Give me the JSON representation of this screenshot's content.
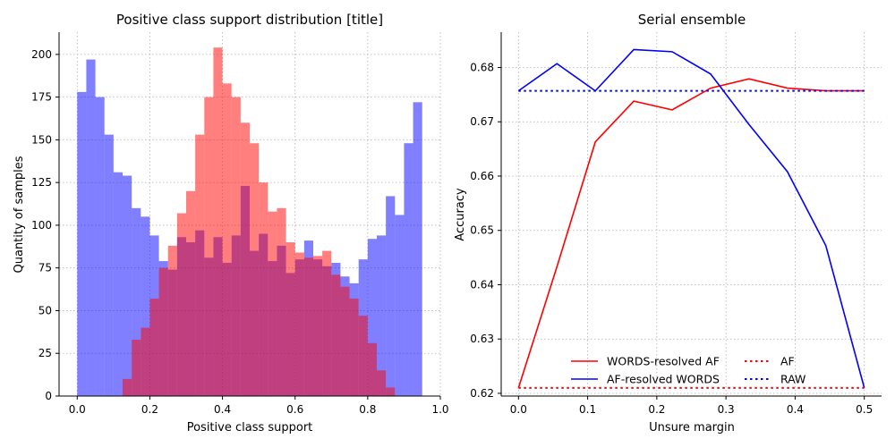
{
  "chart_data": [
    {
      "type": "bar",
      "title": "Positive class support distribution [title]",
      "xlabel": "Positive class support",
      "ylabel": "Quantity of samples",
      "xlim": [
        -0.05,
        1.0
      ],
      "ylim": [
        0,
        213
      ],
      "xticks": [
        0.0,
        0.2,
        0.4,
        0.6,
        0.8,
        1.0
      ],
      "xtick_labels": [
        "0.0",
        "0.2",
        "0.4",
        "0.6",
        "0.8",
        "1.0"
      ],
      "yticks": [
        0,
        25,
        50,
        75,
        100,
        125,
        150,
        175,
        200
      ],
      "grid": true,
      "bin_width": 0.025,
      "bin_starts": [
        0.0,
        0.025,
        0.05,
        0.075,
        0.1,
        0.125,
        0.15,
        0.175,
        0.2,
        0.225,
        0.25,
        0.275,
        0.3,
        0.325,
        0.35,
        0.375,
        0.4,
        0.425,
        0.45,
        0.475,
        0.5,
        0.525,
        0.55,
        0.575,
        0.6,
        0.625,
        0.65,
        0.675,
        0.7,
        0.725,
        0.75,
        0.775,
        0.8,
        0.825,
        0.85,
        0.875,
        0.9,
        0.925,
        0.95,
        0.975
      ],
      "series": [
        {
          "color": "#0000ff",
          "alpha": 0.5,
          "values": [
            178,
            197,
            175,
            153,
            131,
            129,
            110,
            105,
            94,
            79,
            74,
            93,
            90,
            97,
            81,
            93,
            78,
            94,
            123,
            85,
            95,
            79,
            88,
            72,
            80,
            91,
            80,
            76,
            78,
            70,
            66,
            80,
            92,
            94,
            117,
            106,
            148,
            172,
            0,
            0
          ]
        },
        {
          "color": "#ff0000",
          "alpha": 0.5,
          "values": [
            0,
            0,
            0,
            0,
            0,
            10,
            33,
            40,
            57,
            75,
            88,
            107,
            120,
            153,
            175,
            204,
            183,
            175,
            160,
            148,
            125,
            108,
            110,
            90,
            84,
            81,
            82,
            85,
            71,
            64,
            57,
            47,
            31,
            15,
            5,
            0,
            0,
            0,
            0,
            0
          ]
        }
      ]
    },
    {
      "type": "line",
      "title": "Serial ensemble",
      "xlabel": "Unsure margin",
      "ylabel": "Accuracy",
      "xlim": [
        -0.025,
        0.525
      ],
      "ylim": [
        0.6195,
        0.6865
      ],
      "xticks": [
        0.0,
        0.1,
        0.2,
        0.3,
        0.4,
        0.5
      ],
      "xtick_labels": [
        "0.0",
        "0.1",
        "0.2",
        "0.3",
        "0.4",
        "0.5"
      ],
      "yticks": [
        0.62,
        0.63,
        0.64,
        0.65,
        0.66,
        0.67,
        0.68
      ],
      "ytick_labels": [
        "0.62",
        "0.63",
        "0.64",
        "0.65",
        "0.66",
        "0.67",
        "0.68"
      ],
      "grid": true,
      "legend_position": "lower-center",
      "series": [
        {
          "name": "WORDS-resolved AF",
          "color": "#ff0000",
          "style": "solid",
          "x": [
            0.0,
            0.0556,
            0.1111,
            0.1667,
            0.2222,
            0.2778,
            0.3333,
            0.3889,
            0.4444,
            0.5
          ],
          "y": [
            0.621,
            0.6433,
            0.6663,
            0.6738,
            0.6722,
            0.6762,
            0.6779,
            0.6762,
            0.6757,
            0.6757
          ]
        },
        {
          "name": "AF-resolved WORDS",
          "color": "#0000ff",
          "style": "solid",
          "x": [
            0.0,
            0.0556,
            0.1111,
            0.1667,
            0.2222,
            0.2778,
            0.3333,
            0.3889,
            0.4444,
            0.5
          ],
          "y": [
            0.6757,
            0.6807,
            0.6757,
            0.6833,
            0.6829,
            0.6788,
            0.6695,
            0.6608,
            0.6472,
            0.621
          ]
        },
        {
          "name": "AF",
          "color": "#ff0000",
          "style": "dotted",
          "x": [
            0.0,
            0.5
          ],
          "y": [
            0.621,
            0.621
          ]
        },
        {
          "name": "RAW",
          "color": "#0000ff",
          "style": "dotted",
          "x": [
            0.0,
            0.5
          ],
          "y": [
            0.6757,
            0.6757
          ]
        }
      ]
    }
  ]
}
